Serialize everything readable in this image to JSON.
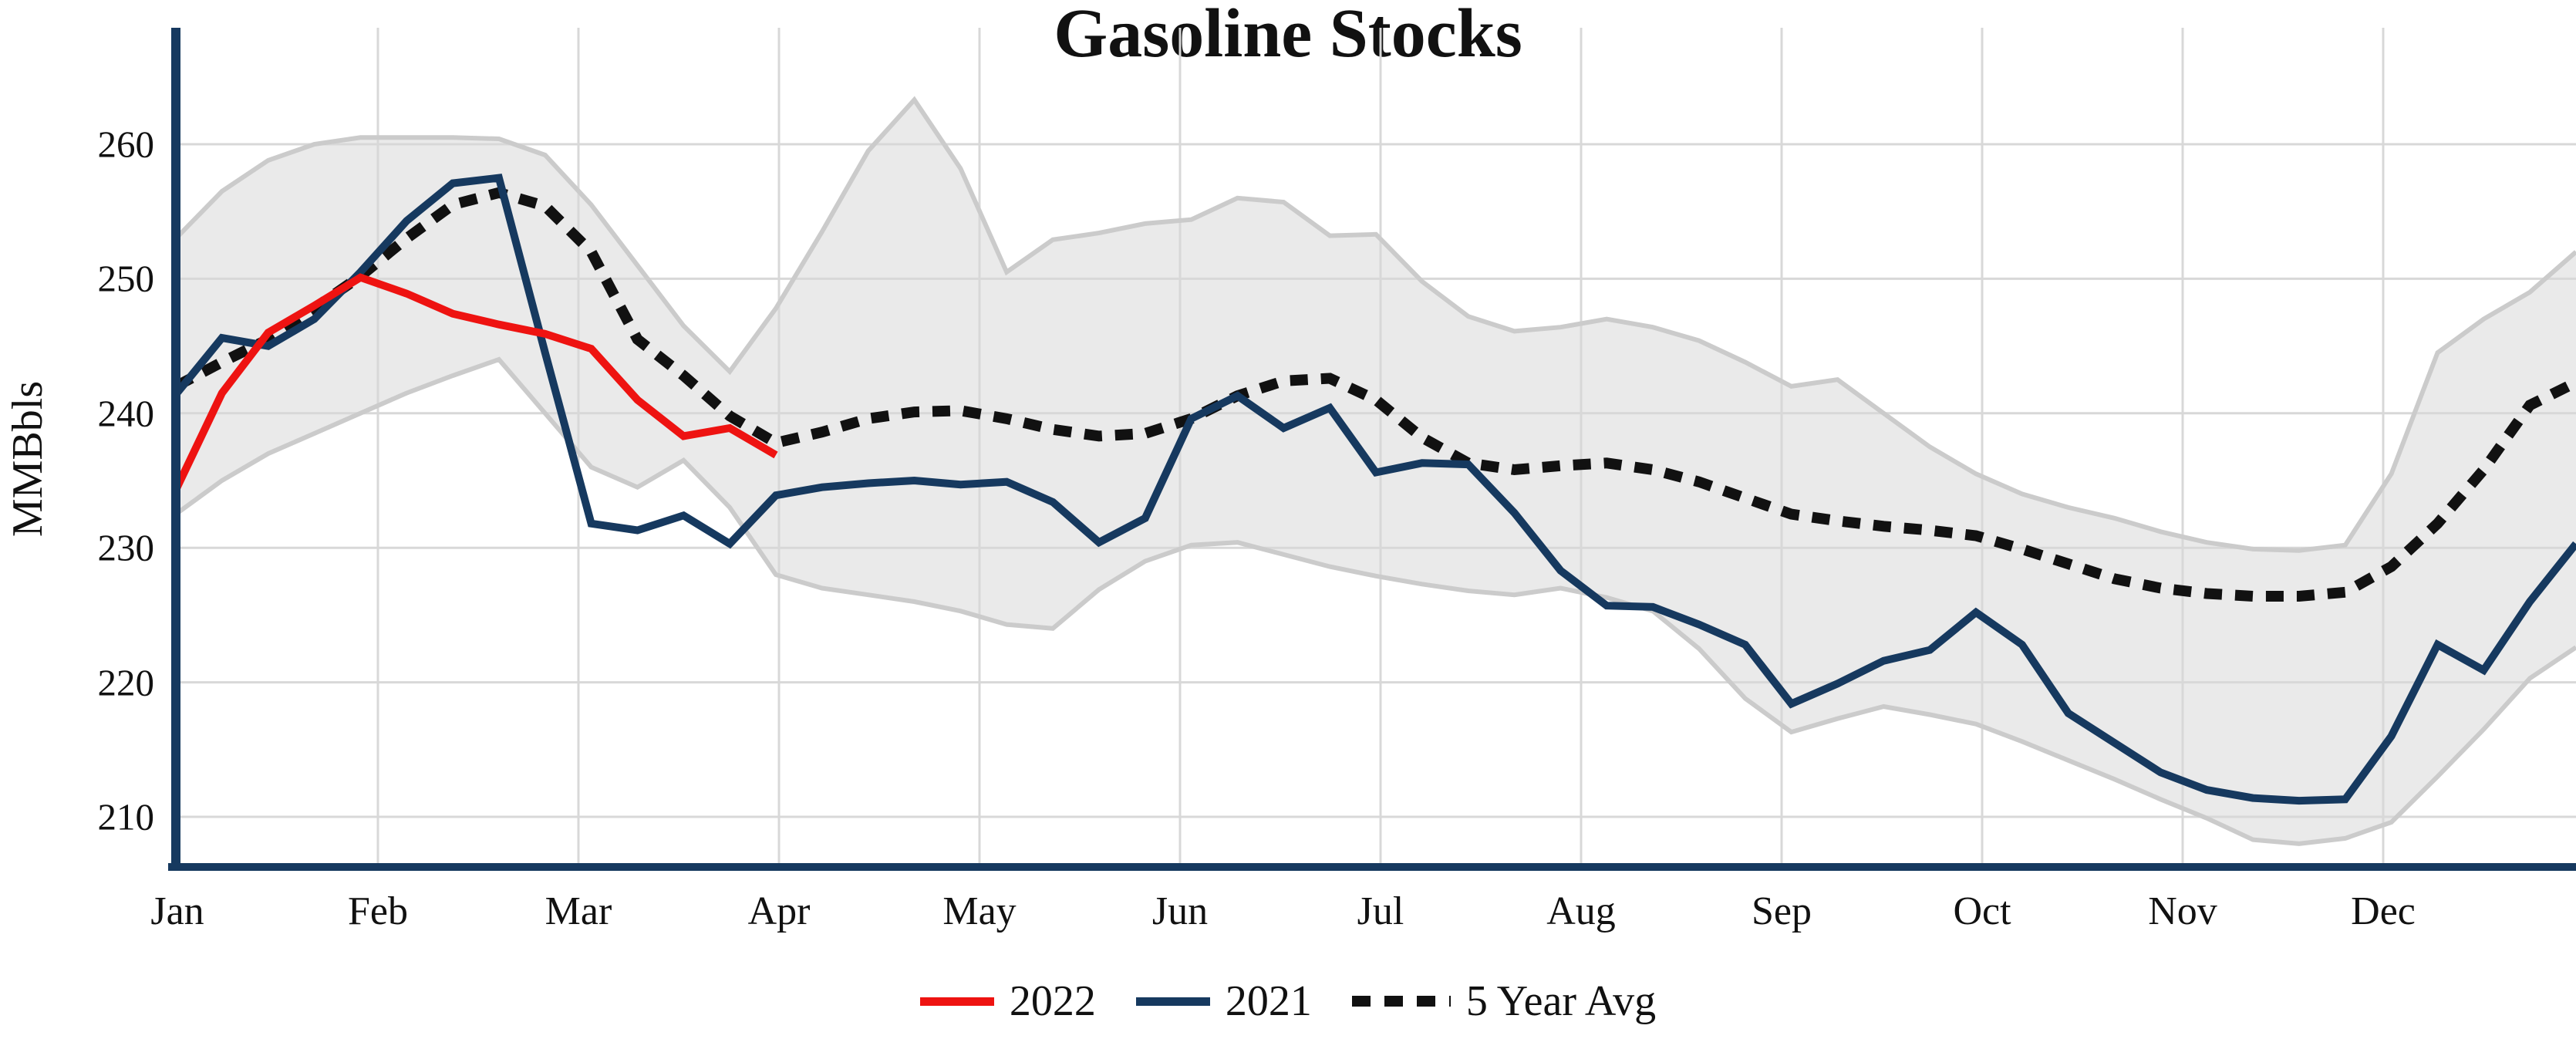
{
  "chart_data": {
    "type": "line",
    "title": "Gasoline Stocks",
    "ylabel": "MMBbls",
    "yticks": [
      260,
      250,
      240,
      230,
      220,
      210
    ],
    "ylim": [
      206.3,
      268.4
    ],
    "x_categories_months": [
      "Jan",
      "Feb",
      "Mar",
      "Apr",
      "May",
      "Jun",
      "Jul",
      "Aug",
      "Sep",
      "Oct",
      "Nov",
      "Dec"
    ],
    "x_unit": "weeks, Jan 1 through Dec 31",
    "grid": true,
    "legend_position": "bottom-center",
    "series": [
      {
        "name": "2022",
        "color": "#ee1311",
        "style": "solid",
        "values": [
          234.3,
          241.5,
          246.0,
          248.0,
          250.1,
          248.9,
          247.4,
          246.6,
          245.9,
          244.8,
          241.0,
          238.3,
          238.9,
          236.9
        ]
      },
      {
        "name": "2021",
        "color": "#16395f",
        "style": "solid",
        "values": [
          241.4,
          245.6,
          245.0,
          247.0,
          250.5,
          254.3,
          257.1,
          257.5,
          244.5,
          231.8,
          231.3,
          232.4,
          230.3,
          233.9,
          234.5,
          234.8,
          235.0,
          234.7,
          234.9,
          233.4,
          230.4,
          232.2,
          239.6,
          241.3,
          238.9,
          240.4,
          235.6,
          236.3,
          236.2,
          232.6,
          228.3,
          225.7,
          225.6,
          224.3,
          222.8,
          218.4,
          219.9,
          221.6,
          222.4,
          225.2,
          222.8,
          217.7,
          215.5,
          213.3,
          212.0,
          211.4,
          211.2,
          211.3,
          216.0,
          222.8,
          220.9,
          226.0,
          230.3
        ]
      },
      {
        "name": "5 Year Avg",
        "color": "#111111",
        "style": "dotted",
        "values": [
          242.0,
          243.8,
          245.5,
          247.8,
          250.2,
          253.0,
          255.5,
          256.4,
          255.4,
          252.0,
          245.5,
          242.8,
          239.8,
          237.8,
          238.6,
          239.6,
          240.1,
          240.2,
          239.6,
          238.8,
          238.3,
          238.5,
          239.6,
          241.3,
          242.4,
          242.6,
          241.0,
          238.2,
          236.3,
          235.8,
          236.1,
          236.3,
          235.8,
          234.9,
          233.7,
          232.5,
          232.0,
          231.6,
          231.3,
          230.9,
          229.9,
          228.8,
          227.7,
          227.0,
          226.6,
          226.4,
          226.4,
          226.7,
          228.6,
          231.8,
          235.8,
          240.6,
          242.3
        ]
      }
    ],
    "band": {
      "name": "5-year range",
      "fill": "#eaeaea",
      "edge": "#cbcbcb",
      "upper": [
        253.0,
        256.5,
        258.8,
        260.0,
        260.5,
        260.5,
        260.5,
        260.4,
        259.2,
        255.5,
        251.0,
        246.5,
        243.1,
        247.8,
        253.5,
        259.5,
        263.3,
        258.2,
        250.5,
        252.9,
        253.4,
        254.1,
        254.4,
        256.0,
        255.7,
        253.2,
        253.3,
        249.8,
        247.2,
        246.1,
        246.4,
        247.0,
        246.4,
        245.4,
        243.8,
        242.0,
        242.5,
        240.0,
        237.5,
        235.5,
        234.0,
        233.0,
        232.2,
        231.2,
        230.4,
        229.9,
        229.8,
        230.2,
        235.5,
        244.5,
        247.0,
        249.0,
        252.0
      ],
      "lower": [
        232.5,
        235.0,
        237.0,
        238.5,
        240.0,
        241.5,
        242.8,
        244.0,
        240.0,
        236.0,
        234.5,
        236.5,
        233.0,
        228.0,
        227.0,
        226.5,
        226.0,
        225.3,
        224.3,
        224.0,
        226.9,
        229.0,
        230.2,
        230.4,
        229.5,
        228.6,
        227.9,
        227.3,
        226.8,
        226.5,
        227.0,
        226.3,
        225.3,
        222.5,
        218.8,
        216.3,
        217.3,
        218.2,
        217.6,
        216.9,
        215.6,
        214.2,
        212.8,
        211.3,
        209.9,
        208.3,
        208.0,
        208.4,
        209.6,
        213.0,
        216.5,
        220.3,
        222.6
      ]
    },
    "legend": [
      "2022",
      "2021",
      "5 Year Avg"
    ]
  },
  "layout_colors": {
    "axis": "#16395f",
    "gridline": "#d8d8d8",
    "text": "#111111",
    "background": "#ffffff"
  }
}
